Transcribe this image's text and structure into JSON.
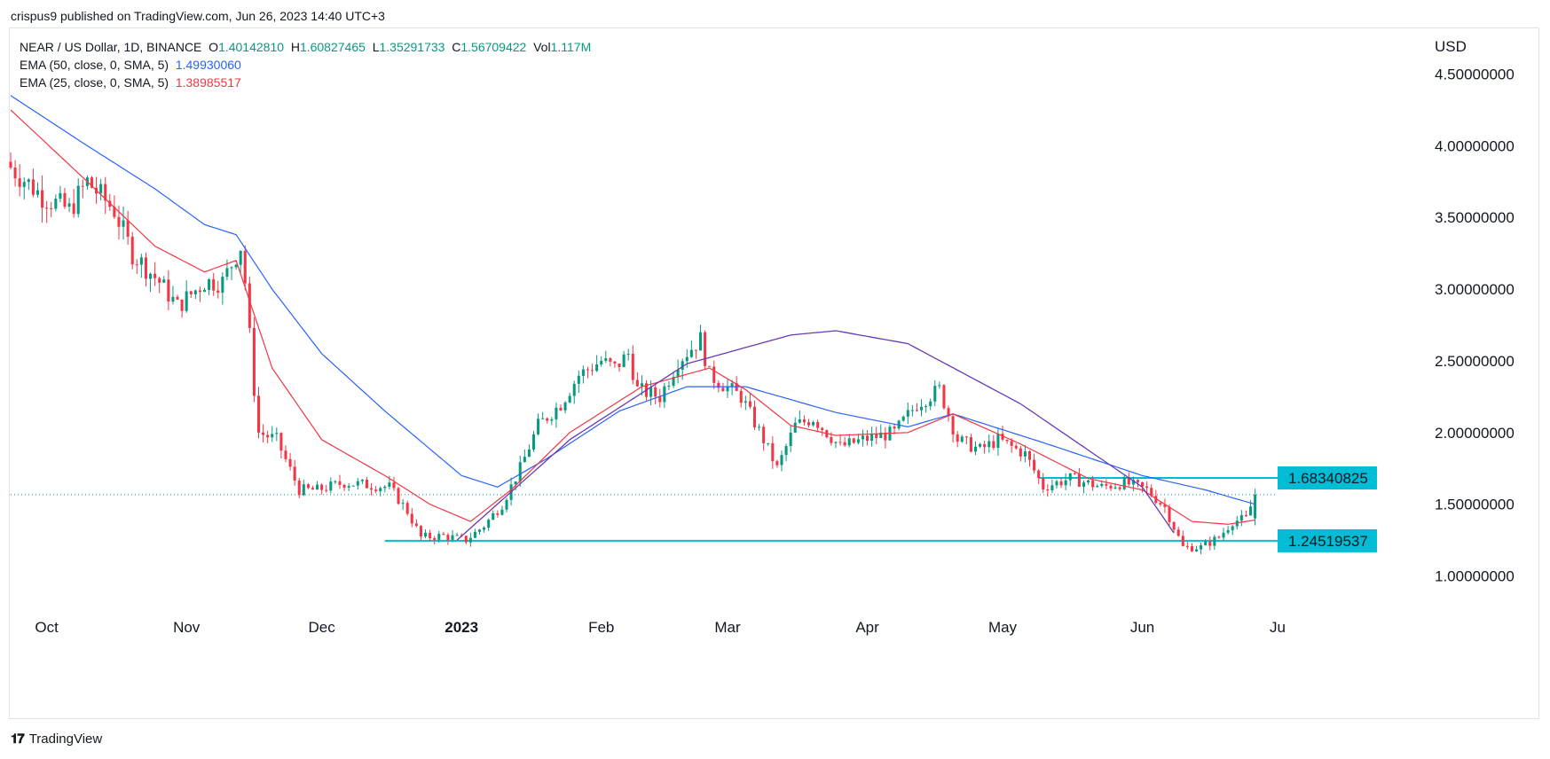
{
  "header": {
    "publisher": "crispus9 published on TradingView.com, Jun 26, 2023 14:40 UTC+3"
  },
  "legend": {
    "symbol": "NEAR / US Dollar, 1D, BINANCE",
    "o_label": "O",
    "o_value": "1.40142810",
    "h_label": "H",
    "h_value": "1.60827465",
    "l_label": "L",
    "l_value": "1.35291733",
    "c_label": "C",
    "c_value": "1.56709422",
    "vol_label": "Vol",
    "vol_value": "1.117M",
    "ema50_label": "EMA (50, close, 0, SMA, 5)",
    "ema50_value": "1.49930060",
    "ema25_label": "EMA (25, close, 0, SMA, 5)",
    "ema25_value": "1.38985517"
  },
  "footer": {
    "brand": "TradingView"
  },
  "colors": {
    "up": "#089981",
    "down": "#f23645",
    "ema50": "#2962ff",
    "ema25": "#f23645",
    "arc": "#673ab7",
    "level": "#00bcd4",
    "grid": "#e0e3eb"
  },
  "chart_data": {
    "type": "candlestick",
    "currency": "USD",
    "ylim": [
      0.75,
      4.8
    ],
    "y_ticks": [
      {
        "value": 4.5,
        "label": "4.50000000"
      },
      {
        "value": 4.0,
        "label": "4.00000000"
      },
      {
        "value": 3.5,
        "label": "3.50000000"
      },
      {
        "value": 3.0,
        "label": "3.00000000"
      },
      {
        "value": 2.5,
        "label": "2.50000000"
      },
      {
        "value": 2.0,
        "label": "2.00000000"
      },
      {
        "value": 1.5,
        "label": "1.50000000"
      },
      {
        "value": 1.0,
        "label": "1.00000000"
      }
    ],
    "x_range": [
      "2022-09-23",
      "2023-07-01"
    ],
    "x_ticks": [
      {
        "date": "2022-10-01",
        "label": "Oct",
        "bold": false
      },
      {
        "date": "2022-11-01",
        "label": "Nov",
        "bold": false
      },
      {
        "date": "2022-12-01",
        "label": "Dec",
        "bold": false
      },
      {
        "date": "2023-01-01",
        "label": "2023",
        "bold": true
      },
      {
        "date": "2023-02-01",
        "label": "Feb",
        "bold": false
      },
      {
        "date": "2023-03-01",
        "label": "Mar",
        "bold": false
      },
      {
        "date": "2023-04-01",
        "label": "Apr",
        "bold": false
      },
      {
        "date": "2023-05-01",
        "label": "May",
        "bold": false
      },
      {
        "date": "2023-06-01",
        "label": "Jun",
        "bold": false
      },
      {
        "date": "2023-07-01",
        "label": "Ju",
        "bold": false
      }
    ],
    "close_anchors": [
      [
        "2022-09-23",
        3.85
      ],
      [
        "2022-09-30",
        3.65
      ],
      [
        "2022-10-06",
        3.55
      ],
      [
        "2022-10-10",
        3.75
      ],
      [
        "2022-10-16",
        3.55
      ],
      [
        "2022-10-20",
        3.25
      ],
      [
        "2022-10-26",
        3.05
      ],
      [
        "2022-10-30",
        2.88
      ],
      [
        "2022-11-05",
        3.05
      ],
      [
        "2022-11-09",
        3.05
      ],
      [
        "2022-11-13",
        3.3
      ],
      [
        "2022-11-14",
        3.05
      ],
      [
        "2022-11-16",
        2.3
      ],
      [
        "2022-11-17",
        2.0
      ],
      [
        "2022-11-21",
        1.95
      ],
      [
        "2022-11-26",
        1.6
      ],
      [
        "2022-11-30",
        1.6
      ],
      [
        "2022-12-06",
        1.65
      ],
      [
        "2022-12-16",
        1.62
      ],
      [
        "2022-12-20",
        1.45
      ],
      [
        "2022-12-23",
        1.27
      ],
      [
        "2022-12-28",
        1.28
      ],
      [
        "2023-01-02",
        1.25
      ],
      [
        "2023-01-06",
        1.35
      ],
      [
        "2023-01-10",
        1.5
      ],
      [
        "2023-01-14",
        1.75
      ],
      [
        "2023-01-18",
        2.05
      ],
      [
        "2023-01-23",
        2.2
      ],
      [
        "2023-01-27",
        2.4
      ],
      [
        "2023-02-01",
        2.5
      ],
      [
        "2023-02-04",
        2.45
      ],
      [
        "2023-02-07",
        2.55
      ],
      [
        "2023-02-09",
        2.3
      ],
      [
        "2023-02-14",
        2.25
      ],
      [
        "2023-02-18",
        2.5
      ],
      [
        "2023-02-23",
        2.65
      ],
      [
        "2023-02-25",
        2.4
      ],
      [
        "2023-03-04",
        2.25
      ],
      [
        "2023-03-09",
        1.95
      ],
      [
        "2023-03-12",
        1.75
      ],
      [
        "2023-03-16",
        2.05
      ],
      [
        "2023-03-20",
        2.1
      ],
      [
        "2023-03-26",
        1.9
      ],
      [
        "2023-03-31",
        1.95
      ],
      [
        "2023-04-07",
        2.0
      ],
      [
        "2023-04-12",
        2.2
      ],
      [
        "2023-04-17",
        2.3
      ],
      [
        "2023-04-21",
        1.95
      ],
      [
        "2023-04-26",
        1.88
      ],
      [
        "2023-04-30",
        1.95
      ],
      [
        "2023-05-06",
        1.85
      ],
      [
        "2023-05-10",
        1.62
      ],
      [
        "2023-05-16",
        1.68
      ],
      [
        "2023-05-23",
        1.62
      ],
      [
        "2023-05-28",
        1.65
      ],
      [
        "2023-06-02",
        1.6
      ],
      [
        "2023-06-06",
        1.48
      ],
      [
        "2023-06-10",
        1.2
      ],
      [
        "2023-06-14",
        1.2
      ],
      [
        "2023-06-18",
        1.27
      ],
      [
        "2023-06-21",
        1.38
      ],
      [
        "2023-06-24",
        1.4
      ],
      [
        "2023-06-26",
        1.567
      ]
    ],
    "ema50_anchors": [
      [
        "2022-09-23",
        4.35
      ],
      [
        "2022-10-10",
        4.0
      ],
      [
        "2022-10-25",
        3.7
      ],
      [
        "2022-11-05",
        3.45
      ],
      [
        "2022-11-12",
        3.38
      ],
      [
        "2022-11-20",
        3.0
      ],
      [
        "2022-12-01",
        2.55
      ],
      [
        "2022-12-15",
        2.15
      ],
      [
        "2023-01-01",
        1.7
      ],
      [
        "2023-01-09",
        1.62
      ],
      [
        "2023-01-20",
        1.82
      ],
      [
        "2023-02-05",
        2.15
      ],
      [
        "2023-02-20",
        2.32
      ],
      [
        "2023-03-05",
        2.32
      ],
      [
        "2023-03-25",
        2.14
      ],
      [
        "2023-04-10",
        2.04
      ],
      [
        "2023-04-20",
        2.13
      ],
      [
        "2023-05-10",
        1.93
      ],
      [
        "2023-06-01",
        1.7
      ],
      [
        "2023-06-15",
        1.6
      ],
      [
        "2023-06-26",
        1.5
      ]
    ],
    "ema25_anchors": [
      [
        "2022-09-23",
        4.25
      ],
      [
        "2022-10-10",
        3.75
      ],
      [
        "2022-10-25",
        3.3
      ],
      [
        "2022-11-05",
        3.12
      ],
      [
        "2022-11-12",
        3.2
      ],
      [
        "2022-11-20",
        2.45
      ],
      [
        "2022-12-01",
        1.95
      ],
      [
        "2022-12-15",
        1.7
      ],
      [
        "2022-12-25",
        1.5
      ],
      [
        "2023-01-03",
        1.38
      ],
      [
        "2023-01-12",
        1.6
      ],
      [
        "2023-01-25",
        2.0
      ],
      [
        "2023-02-10",
        2.32
      ],
      [
        "2023-02-25",
        2.45
      ],
      [
        "2023-03-05",
        2.3
      ],
      [
        "2023-03-15",
        2.05
      ],
      [
        "2023-03-25",
        1.98
      ],
      [
        "2023-04-10",
        2.0
      ],
      [
        "2023-04-20",
        2.13
      ],
      [
        "2023-05-05",
        1.92
      ],
      [
        "2023-05-20",
        1.68
      ],
      [
        "2023-06-01",
        1.6
      ],
      [
        "2023-06-12",
        1.38
      ],
      [
        "2023-06-20",
        1.36
      ],
      [
        "2023-06-26",
        1.39
      ]
    ],
    "arc_anchors": [
      [
        "2022-12-31",
        1.25
      ],
      [
        "2023-01-25",
        1.95
      ],
      [
        "2023-02-20",
        2.48
      ],
      [
        "2023-03-15",
        2.68
      ],
      [
        "2023-03-25",
        2.71
      ],
      [
        "2023-04-10",
        2.62
      ],
      [
        "2023-05-05",
        2.2
      ],
      [
        "2023-06-01",
        1.62
      ],
      [
        "2023-06-08",
        1.3
      ]
    ],
    "levels": [
      {
        "value": 1.68340825,
        "label": "1.68340825",
        "from": "2023-05-09"
      },
      {
        "value": 1.24519537,
        "label": "1.24519537",
        "from": "2022-12-15"
      }
    ],
    "last_price": 1.56709422,
    "last_date": "2023-06-26"
  }
}
